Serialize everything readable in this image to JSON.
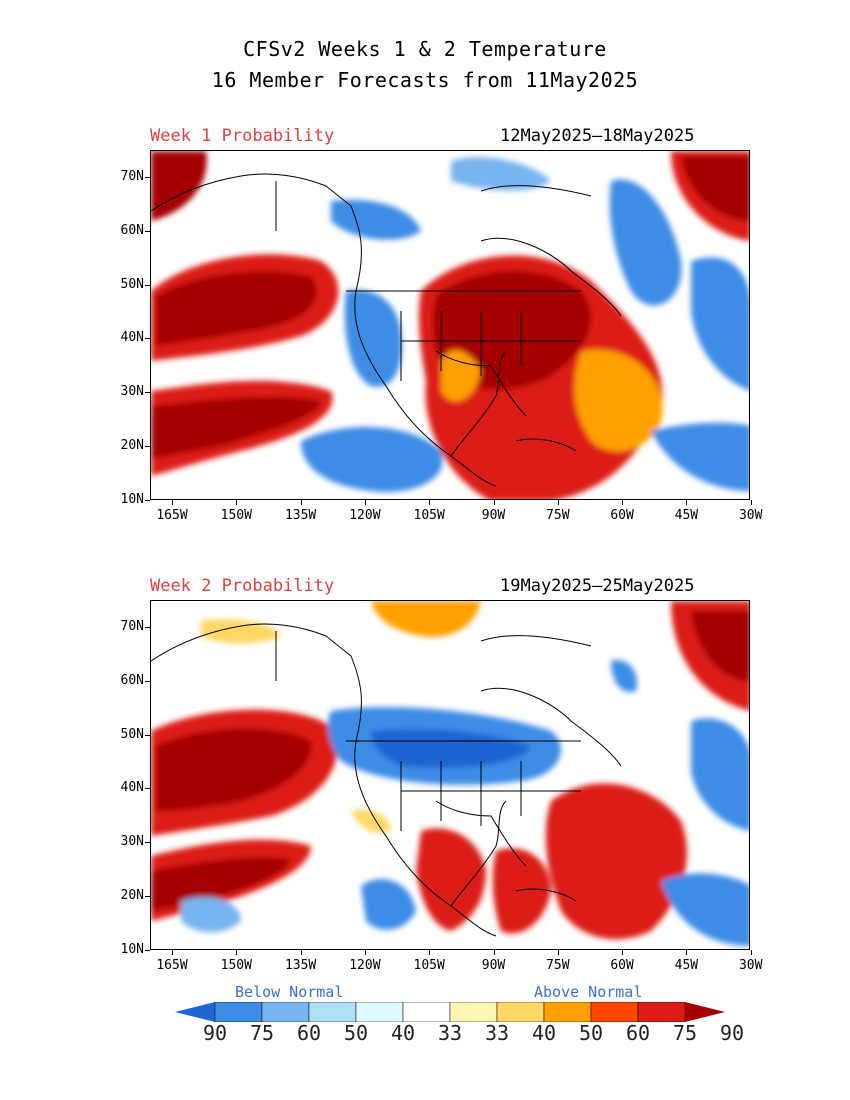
{
  "title_line1": "CFSv2 Weeks 1 & 2 Temperature",
  "title_line2": "16 Member Forecasts from 11May2025",
  "panels": [
    {
      "label": "Week 1 Probability",
      "dates": "12May2025‒18May2025"
    },
    {
      "label": "Week 2 Probability",
      "dates": "19May2025‒25May2025"
    }
  ],
  "lat_labels": [
    "70N",
    "60N",
    "50N",
    "40N",
    "30N",
    "20N",
    "10N"
  ],
  "lon_labels": [
    "165W",
    "150W",
    "135W",
    "120W",
    "105W",
    "90W",
    "75W",
    "60W",
    "45W",
    "30W"
  ],
  "legend": {
    "below_label": "Below Normal",
    "above_label": "Above Normal",
    "tick_labels": [
      "90",
      "75",
      "60",
      "50",
      "40",
      "33",
      "33",
      "40",
      "50",
      "60",
      "75",
      "90"
    ],
    "colors": [
      "#1e64d2",
      "#3c8ce6",
      "#78b4f0",
      "#aee1f5",
      "#dcfaff",
      "#ffffff",
      "#fff5b4",
      "#ffd764",
      "#ffa000",
      "#ff4600",
      "#dc1e14",
      "#a50000"
    ]
  }
}
